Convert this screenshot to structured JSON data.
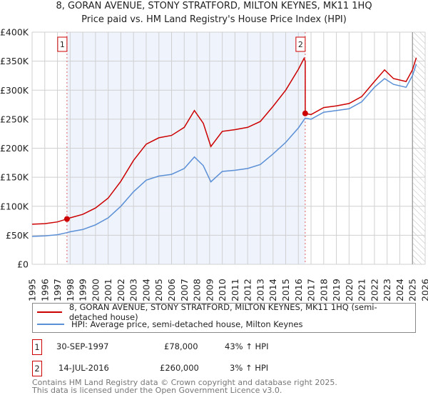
{
  "chart_data": {
    "type": "line",
    "title": "8, GORAN AVENUE, STONY STRATFORD, MILTON KEYNES, MK11 1HQ",
    "subtitle": "Price paid vs. HM Land Registry's House Price Index (HPI)",
    "xlim": [
      1995,
      2026
    ],
    "ylim": [
      0,
      400000
    ],
    "grid": true,
    "x_ticks": [
      "1995",
      "1996",
      "1997",
      "1998",
      "1999",
      "2000",
      "2001",
      "2002",
      "2003",
      "2004",
      "2005",
      "2006",
      "2007",
      "2008",
      "2009",
      "2010",
      "2011",
      "2012",
      "2013",
      "2014",
      "2015",
      "2016",
      "2017",
      "2018",
      "2019",
      "2020",
      "2021",
      "2022",
      "2023",
      "2024",
      "2025",
      "2026"
    ],
    "y_ticks": [
      {
        "v": 0,
        "label": "£0"
      },
      {
        "v": 50000,
        "label": "£50K"
      },
      {
        "v": 100000,
        "label": "£100K"
      },
      {
        "v": 150000,
        "label": "£150K"
      },
      {
        "v": 200000,
        "label": "£200K"
      },
      {
        "v": 250000,
        "label": "£250K"
      },
      {
        "v": 300000,
        "label": "£300K"
      },
      {
        "v": 350000,
        "label": "£350K"
      },
      {
        "v": 400000,
        "label": "£400K"
      }
    ],
    "ownership_shading": [
      1997.75,
      2016.54
    ],
    "forecast_hatch_from": 2025.0,
    "series": [
      {
        "name": "8, GORAN AVENUE, STONY STRATFORD, MILTON KEYNES, MK11 1HQ (semi-detached house)",
        "color": "#cc0000",
        "points": [
          [
            1995,
            69000
          ],
          [
            1996,
            70000
          ],
          [
            1997,
            73000
          ],
          [
            1997.75,
            78000
          ],
          [
            1998,
            80000
          ],
          [
            1999,
            86000
          ],
          [
            2000,
            97000
          ],
          [
            2001,
            114000
          ],
          [
            2002,
            143000
          ],
          [
            2003,
            179000
          ],
          [
            2004,
            207000
          ],
          [
            2005,
            218000
          ],
          [
            2006,
            222000
          ],
          [
            2007,
            236000
          ],
          [
            2007.8,
            265000
          ],
          [
            2008.5,
            243000
          ],
          [
            2009.1,
            203000
          ],
          [
            2010,
            229000
          ],
          [
            2011,
            232000
          ],
          [
            2012,
            236000
          ],
          [
            2013,
            246000
          ],
          [
            2014,
            272000
          ],
          [
            2015,
            300000
          ],
          [
            2016,
            336000
          ],
          [
            2016.45,
            355000
          ],
          [
            2016.54,
            350000
          ],
          [
            2016.54,
            260000
          ],
          [
            2017,
            258000
          ],
          [
            2018,
            270000
          ],
          [
            2019,
            273000
          ],
          [
            2020,
            277000
          ],
          [
            2021,
            289000
          ],
          [
            2022,
            315000
          ],
          [
            2022.8,
            335000
          ],
          [
            2023.5,
            320000
          ],
          [
            2024.5,
            315000
          ],
          [
            2025,
            335000
          ],
          [
            2025.3,
            356000
          ]
        ]
      },
      {
        "name": "HPI: Average price, semi-detached house, Milton Keynes",
        "color": "#5b8fd6",
        "points": [
          [
            1995,
            48000
          ],
          [
            1996,
            49000
          ],
          [
            1997,
            51000
          ],
          [
            1997.75,
            54500
          ],
          [
            1998,
            56000
          ],
          [
            1999,
            60000
          ],
          [
            2000,
            68000
          ],
          [
            2001,
            80000
          ],
          [
            2002,
            100000
          ],
          [
            2003,
            125000
          ],
          [
            2004,
            145000
          ],
          [
            2005,
            152000
          ],
          [
            2006,
            155000
          ],
          [
            2007,
            165000
          ],
          [
            2007.8,
            185000
          ],
          [
            2008.5,
            170000
          ],
          [
            2009.1,
            142000
          ],
          [
            2010,
            160000
          ],
          [
            2011,
            162000
          ],
          [
            2012,
            165000
          ],
          [
            2013,
            172000
          ],
          [
            2014,
            190000
          ],
          [
            2015,
            210000
          ],
          [
            2016,
            235000
          ],
          [
            2016.54,
            252000
          ],
          [
            2017,
            250000
          ],
          [
            2018,
            262000
          ],
          [
            2019,
            265000
          ],
          [
            2020,
            268000
          ],
          [
            2021,
            280000
          ],
          [
            2022,
            305000
          ],
          [
            2022.8,
            320000
          ],
          [
            2023.5,
            310000
          ],
          [
            2024.5,
            305000
          ],
          [
            2025,
            325000
          ],
          [
            2025.3,
            345000
          ]
        ]
      }
    ],
    "sales": [
      {
        "id": "1",
        "x": 1997.75,
        "y": 78000
      },
      {
        "id": "2",
        "x": 2016.54,
        "y": 260000
      }
    ]
  },
  "legend": {
    "red": "8, GORAN AVENUE, STONY STRATFORD, MILTON KEYNES, MK11 1HQ (semi-detached house)",
    "blue": "HPI: Average price, semi-detached house, Milton Keynes"
  },
  "transactions": [
    {
      "id": "1",
      "date": "30-SEP-1997",
      "price": "£78,000",
      "hpi": "43% ↑ HPI"
    },
    {
      "id": "2",
      "date": "14-JUL-2016",
      "price": "£260,000",
      "hpi": "3% ↑ HPI"
    }
  ],
  "footer": {
    "line1": "Contains HM Land Registry data © Crown copyright and database right 2025.",
    "line2": "This data is licensed under the Open Government Licence v3.0."
  }
}
